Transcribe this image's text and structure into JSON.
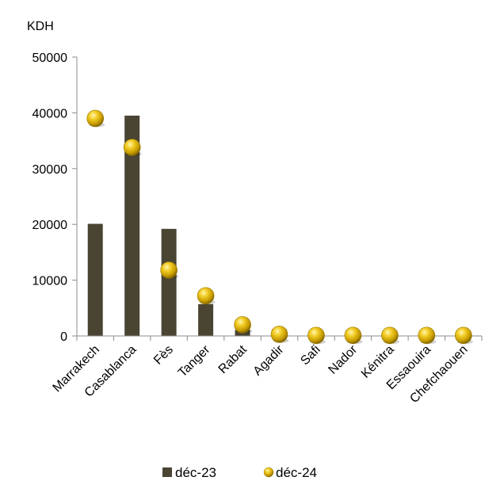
{
  "chart_data": {
    "type": "bar",
    "unit_label": "KDH",
    "categories": [
      "Marrakech",
      "Casablanca",
      "Fès",
      "Tanger",
      "Rabat",
      "Agadir",
      "Safi",
      "Nador",
      "Kénitra",
      "Essaouira",
      "Chefchaouen"
    ],
    "series": [
      {
        "name": "déc-23",
        "type": "bar",
        "color": "#4a4433",
        "values": [
          20100,
          39500,
          19200,
          5700,
          1100,
          1200,
          0,
          0,
          0,
          0,
          0
        ]
      },
      {
        "name": "déc-24",
        "type": "marker",
        "color": "#d4aa00",
        "values": [
          39000,
          33800,
          11800,
          7200,
          2000,
          300,
          100,
          100,
          100,
          100,
          100
        ]
      }
    ],
    "ylim": [
      0,
      50000
    ],
    "yticks": [
      0,
      10000,
      20000,
      30000,
      40000,
      50000
    ],
    "grid": false,
    "legend_position": "bottom"
  }
}
